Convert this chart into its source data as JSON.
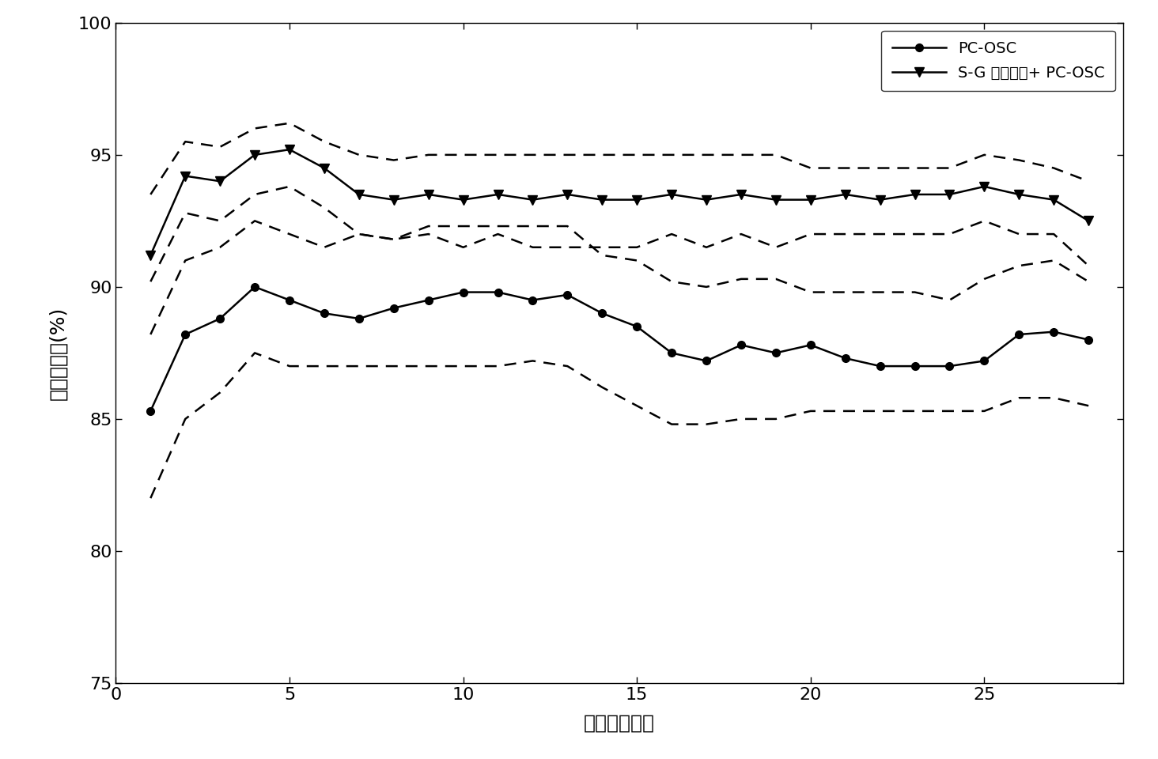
{
  "x": [
    1,
    2,
    3,
    4,
    5,
    6,
    7,
    8,
    9,
    10,
    11,
    12,
    13,
    14,
    15,
    16,
    17,
    18,
    19,
    20,
    21,
    22,
    23,
    24,
    25,
    26,
    27,
    28
  ],
  "pc_osc": [
    85.3,
    88.2,
    88.8,
    90.0,
    89.5,
    89.0,
    88.8,
    89.2,
    89.5,
    89.8,
    89.8,
    89.5,
    89.7,
    89.0,
    88.5,
    87.5,
    87.2,
    87.8,
    87.5,
    87.8,
    87.3,
    87.0,
    87.0,
    87.0,
    87.2,
    88.2,
    88.3,
    88.0
  ],
  "sg_osc": [
    91.2,
    94.2,
    94.0,
    95.0,
    95.2,
    94.5,
    93.5,
    93.3,
    93.5,
    93.3,
    93.5,
    93.3,
    93.5,
    93.3,
    93.3,
    93.5,
    93.3,
    93.5,
    93.3,
    93.3,
    93.5,
    93.3,
    93.5,
    93.5,
    93.8,
    93.5,
    93.3,
    92.5
  ],
  "pc_osc_upper": [
    88.2,
    91.0,
    91.5,
    92.5,
    92.0,
    91.5,
    92.0,
    91.8,
    92.3,
    92.3,
    92.3,
    92.3,
    92.3,
    91.2,
    91.0,
    90.2,
    90.0,
    90.3,
    90.3,
    89.8,
    89.8,
    89.8,
    89.8,
    89.5,
    90.3,
    90.8,
    91.0,
    90.2
  ],
  "pc_osc_lower": [
    82.0,
    85.0,
    86.0,
    87.5,
    87.0,
    87.0,
    87.0,
    87.0,
    87.0,
    87.0,
    87.0,
    87.2,
    87.0,
    86.2,
    85.5,
    84.8,
    84.8,
    85.0,
    85.0,
    85.3,
    85.3,
    85.3,
    85.3,
    85.3,
    85.3,
    85.8,
    85.8,
    85.5
  ],
  "sg_osc_upper": [
    93.5,
    95.5,
    95.3,
    96.0,
    96.2,
    95.5,
    95.0,
    94.8,
    95.0,
    95.0,
    95.0,
    95.0,
    95.0,
    95.0,
    95.0,
    95.0,
    95.0,
    95.0,
    95.0,
    94.5,
    94.5,
    94.5,
    94.5,
    94.5,
    95.0,
    94.8,
    94.5,
    94.0
  ],
  "sg_osc_lower": [
    90.2,
    92.8,
    92.5,
    93.5,
    93.8,
    93.0,
    92.0,
    91.8,
    92.0,
    91.5,
    92.0,
    91.5,
    91.5,
    91.5,
    91.5,
    92.0,
    91.5,
    92.0,
    91.5,
    92.0,
    92.0,
    92.0,
    92.0,
    92.0,
    92.5,
    92.0,
    92.0,
    90.8
  ],
  "ylim": [
    75,
    100
  ],
  "xlim": [
    0,
    29
  ],
  "yticks": [
    75,
    80,
    85,
    90,
    95,
    100
  ],
  "xticks": [
    0,
    5,
    10,
    15,
    20,
    25
  ],
  "xlabel": "校正主因子数",
  "ylabel": "鉴定正确率(%)",
  "legend1": "PC-OSC",
  "legend2": "S-G 一阶导数+ PC-OSC",
  "line_color": "#000000",
  "bg_color": "#ffffff",
  "label_fontsize": 18,
  "tick_fontsize": 16,
  "legend_fontsize": 14
}
